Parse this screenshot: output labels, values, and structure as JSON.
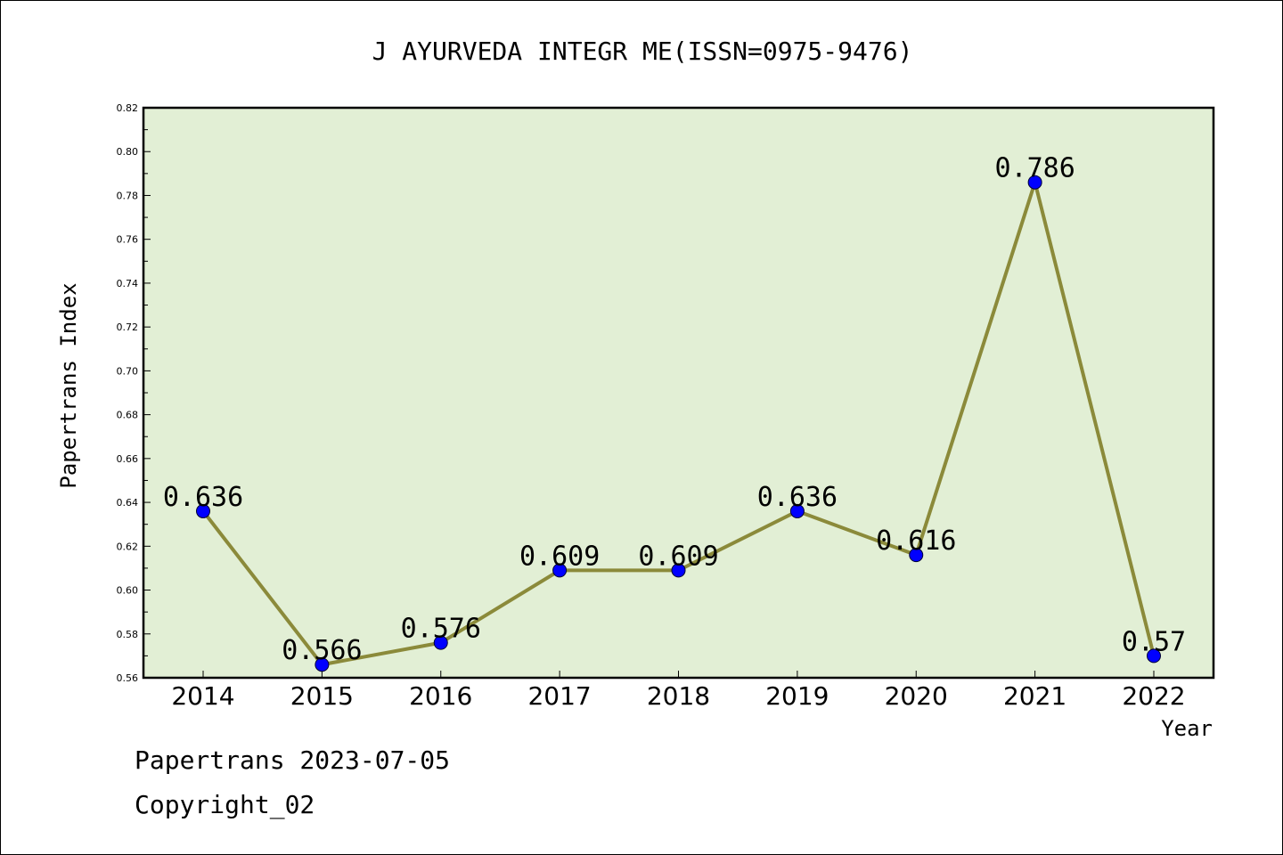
{
  "chart_data": {
    "type": "line",
    "title": "J AYURVEDA INTEGR ME(ISSN=0975-9476)",
    "xlabel": "Year",
    "ylabel": "Papertrans Index",
    "categories": [
      "2014",
      "2015",
      "2016",
      "2017",
      "2018",
      "2019",
      "2020",
      "2021",
      "2022"
    ],
    "series": [
      {
        "values": [
          0.636,
          0.566,
          0.576,
          0.609,
          0.609,
          0.636,
          0.616,
          0.786,
          0.57
        ]
      }
    ],
    "data_labels": [
      "0.636",
      "0.566",
      "0.576",
      "0.609",
      "0.609",
      "0.636",
      "0.616",
      "0.786",
      "0.57"
    ],
    "ylim": [
      0.56,
      0.82
    ],
    "yticks": [
      "0.56",
      "0.58",
      "0.60",
      "0.62",
      "0.64",
      "0.66",
      "0.68",
      "0.70",
      "0.72",
      "0.74",
      "0.76",
      "0.78",
      "0.80",
      "0.82"
    ],
    "grid": false,
    "colors": {
      "plot_background": "#e2efd5",
      "line": "#8b8a3a",
      "marker": "#0000ff"
    }
  },
  "footer": {
    "date_text": "Papertrans 2023-07-05",
    "copyright_text": "Copyright_02"
  }
}
